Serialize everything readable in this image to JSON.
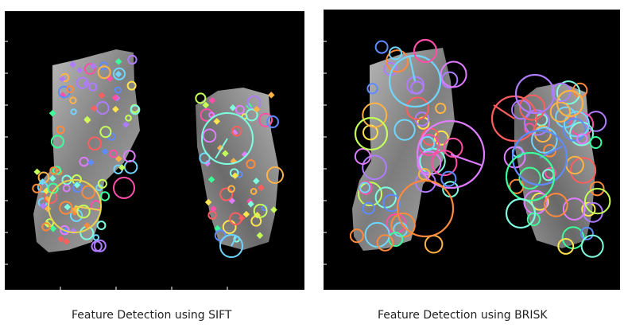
{
  "captions": {
    "sift": "Feature Detection using SIFT",
    "brisk": "Feature Detection using BRISK"
  },
  "colors": {
    "background": "#000000",
    "tissue_light": "#cfcfcf",
    "tissue_dark": "#6a6a6a",
    "tick": "#ffffff"
  },
  "keypoint_palette": [
    "#ff4fa8",
    "#6fd6ff",
    "#c4ff5a",
    "#ffb347",
    "#b07cff",
    "#3cff9a",
    "#ff5e5e",
    "#5e8bff",
    "#ffe44d",
    "#e07dff",
    "#7dffe0",
    "#ff8a3c"
  ]
}
